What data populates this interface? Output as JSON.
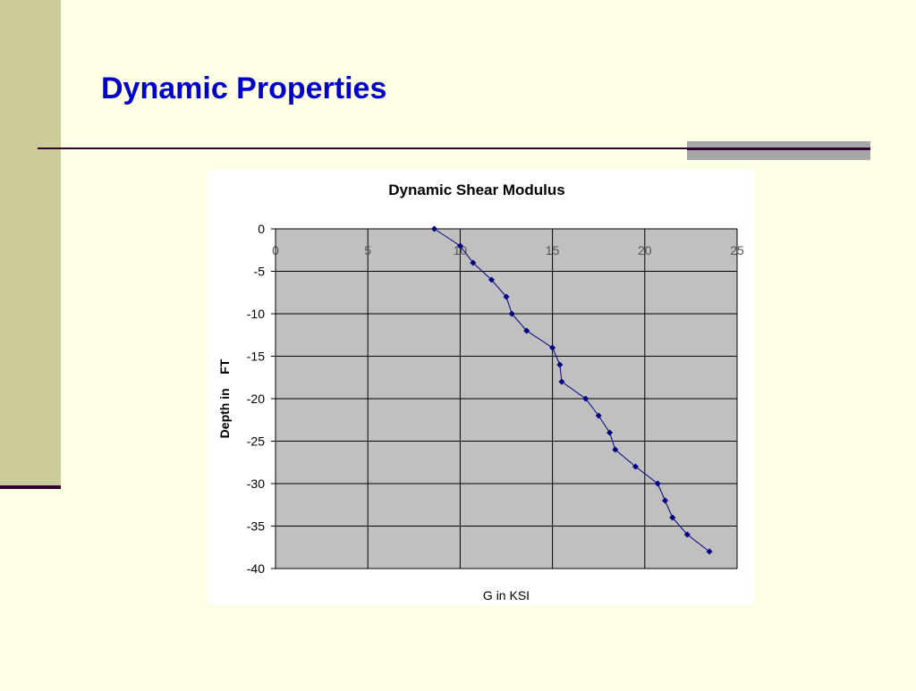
{
  "slide": {
    "title": "Dynamic Properties"
  },
  "chart_data": {
    "type": "line",
    "title": "Dynamic Shear Modulus",
    "x_label": "G in KSI",
    "y_label": "Depth in    FT",
    "x": [
      8.6,
      10.0,
      10.7,
      11.7,
      12.5,
      12.8,
      13.6,
      15.0,
      15.4,
      15.5,
      16.8,
      17.5,
      18.1,
      18.4,
      19.5,
      20.7,
      21.1,
      21.5,
      22.3,
      23.5
    ],
    "series": [
      {
        "name": "Depth",
        "color": "#000080",
        "values": [
          0,
          -2,
          -4,
          -6,
          -8,
          -10,
          -12,
          -14,
          -16,
          -18,
          -20,
          -22,
          -24,
          -26,
          -28,
          -30,
          -32,
          -34,
          -36,
          -38
        ]
      }
    ],
    "xlim": [
      0,
      25
    ],
    "xticks": [
      0,
      5,
      10,
      15,
      20,
      25
    ],
    "ylim": [
      -40,
      0
    ],
    "yticks": [
      0,
      -5,
      -10,
      -15,
      -20,
      -25,
      -30,
      -35,
      -40
    ],
    "grid": true,
    "plot_background": "#c0c0c0"
  }
}
